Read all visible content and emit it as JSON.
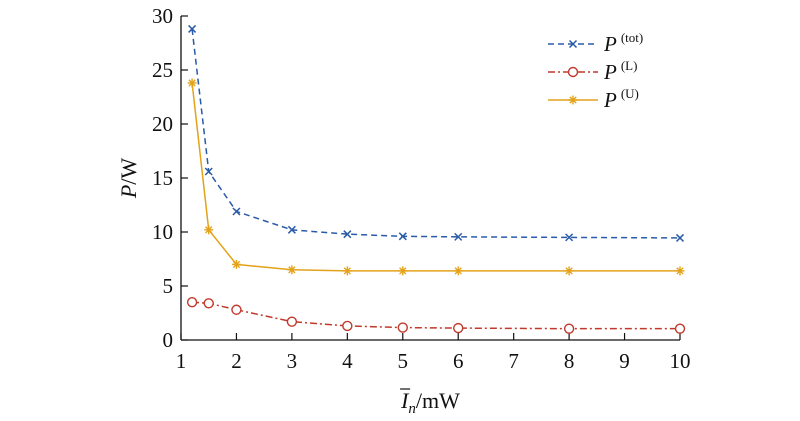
{
  "chart_data": {
    "type": "line",
    "xlabel": {
      "var": "I",
      "sub": "n",
      "unit": "/mW"
    },
    "ylabel": {
      "var": "P",
      "unit": "/W"
    },
    "xlim": [
      1,
      10
    ],
    "ylim": [
      0,
      30
    ],
    "xticks": [
      1,
      2,
      3,
      4,
      5,
      6,
      7,
      8,
      9,
      10
    ],
    "yticks": [
      0,
      5,
      10,
      15,
      20,
      25,
      30
    ],
    "grid": false,
    "legend_position": "top-right",
    "series": [
      {
        "name": "P",
        "sup": "(tot)",
        "color": "#2a5ba8",
        "dash": "dashed",
        "marker": "x",
        "x": [
          1.2,
          1.5,
          2,
          3,
          4,
          5,
          6,
          8,
          10
        ],
        "y": [
          28.8,
          15.6,
          11.9,
          10.2,
          9.8,
          9.6,
          9.55,
          9.5,
          9.45
        ]
      },
      {
        "name": "P",
        "sup": "(L)",
        "color": "#c0392b",
        "dash": "dashdot",
        "marker": "circle",
        "x": [
          1.2,
          1.5,
          2,
          3,
          4,
          5,
          6,
          8,
          10
        ],
        "y": [
          3.5,
          3.4,
          2.8,
          1.7,
          1.3,
          1.15,
          1.1,
          1.05,
          1.05
        ]
      },
      {
        "name": "P",
        "sup": "(U)",
        "color": "#e3a21a",
        "dash": "solid",
        "marker": "star",
        "x": [
          1.2,
          1.5,
          2,
          3,
          4,
          5,
          6,
          8,
          10
        ],
        "y": [
          23.8,
          10.2,
          7.0,
          6.5,
          6.4,
          6.4,
          6.4,
          6.4,
          6.4
        ]
      }
    ]
  }
}
